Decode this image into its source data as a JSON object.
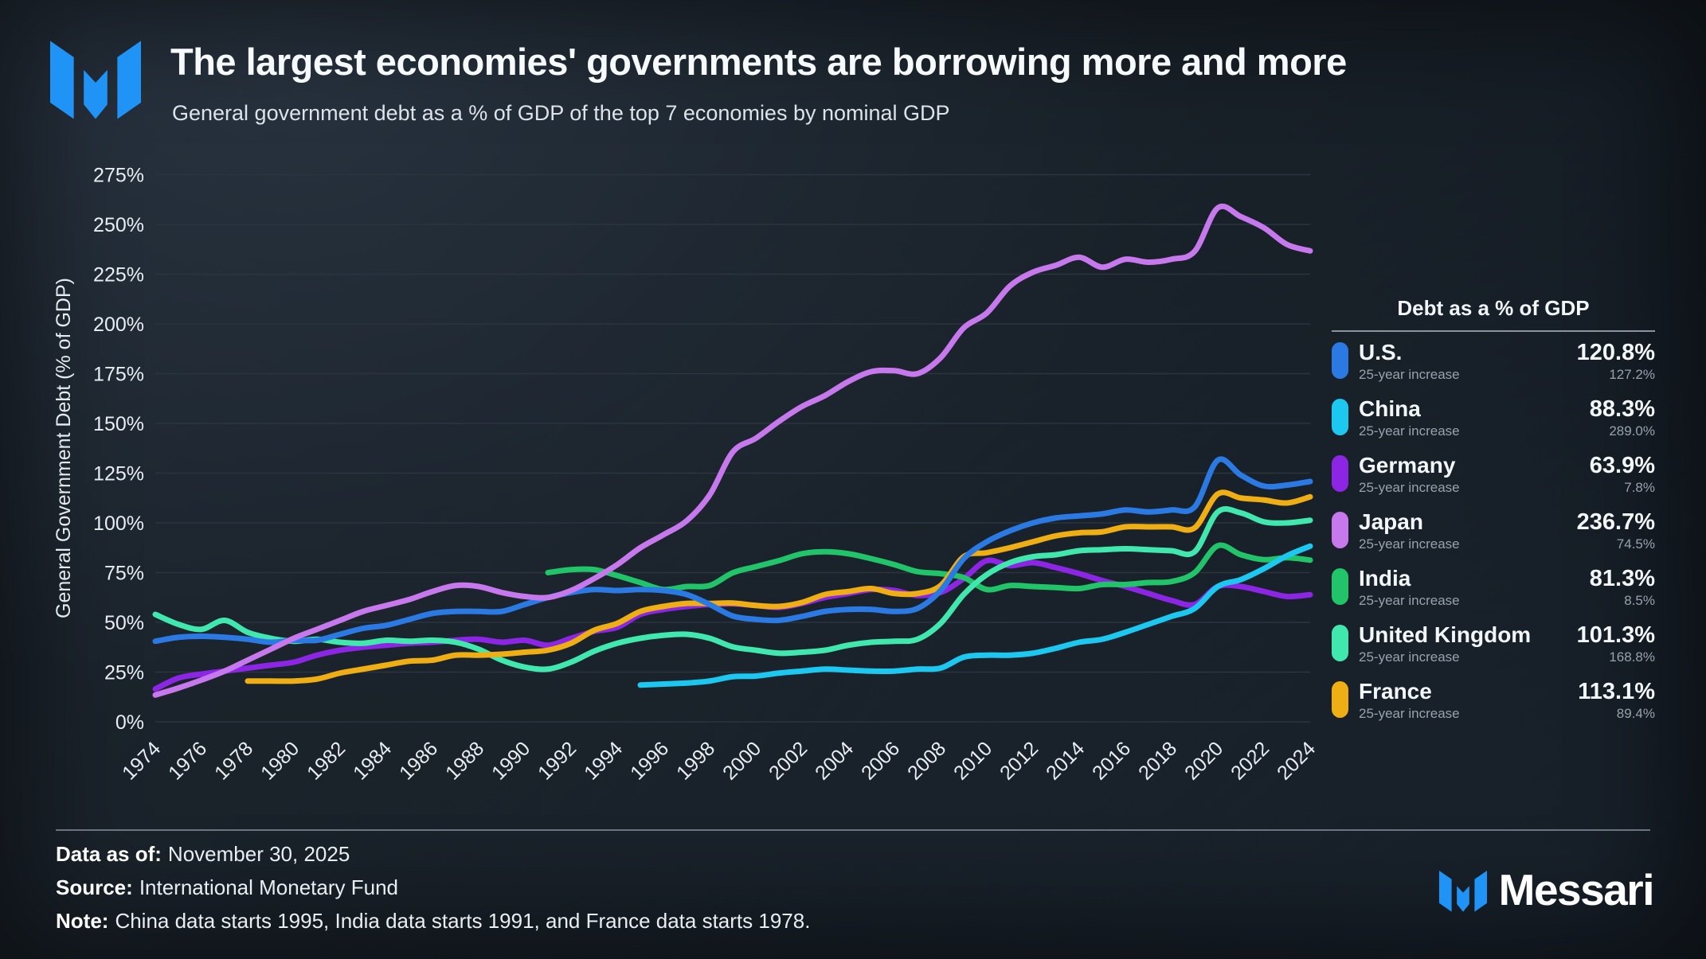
{
  "header": {
    "title": "The largest economies' governments are borrowing more and more",
    "subtitle": "General government debt as a % of GDP of the top 7 economies by nominal GDP"
  },
  "chart_data": {
    "type": "line",
    "title": "The largest economies' governments are borrowing more and more",
    "ylabel": "General Government Debt (% of GDP)",
    "ylim": [
      0,
      275
    ],
    "ytick_step": 25,
    "yticks": [
      "0%",
      "25%",
      "50%",
      "75%",
      "100%",
      "125%",
      "150%",
      "175%",
      "200%",
      "225%",
      "250%",
      "275%"
    ],
    "xticks": [
      1974,
      1976,
      1978,
      1980,
      1982,
      1984,
      1986,
      1988,
      1990,
      1992,
      1994,
      1996,
      1998,
      2000,
      2002,
      2004,
      2006,
      2008,
      2010,
      2012,
      2014,
      2016,
      2018,
      2020,
      2022,
      2024
    ],
    "x_range": [
      1974,
      2024
    ],
    "grid": "horizontal",
    "legend_position": "right",
    "series": [
      {
        "name": "U.S.",
        "color": "#2b7ae4",
        "start_year": 1974,
        "values": [
          40.5,
          42.5,
          43,
          42.5,
          41.5,
          40,
          41,
          41,
          44,
          47,
          48.5,
          51.5,
          54.5,
          55.5,
          55.5,
          55.5,
          59,
          62.5,
          65,
          66.5,
          66,
          66.5,
          66,
          64,
          59,
          53.2,
          51.5,
          51,
          53,
          55.5,
          56.5,
          56.5,
          55.5,
          57,
          66,
          82,
          90.5,
          96,
          100,
          102.5,
          103.5,
          104.5,
          106.5,
          105.5,
          106.5,
          108,
          131.5,
          124,
          118.5,
          119,
          120.8
        ]
      },
      {
        "name": "China",
        "color": "#1cc7f0",
        "start_year": 1995,
        "values": [
          18.5,
          19,
          19.5,
          20.5,
          22.7,
          23,
          24.5,
          25.5,
          26.5,
          26,
          25.5,
          25.5,
          26.5,
          27,
          32.5,
          33.5,
          33.5,
          34.5,
          37,
          40,
          41.5,
          45,
          49,
          53,
          57,
          68,
          71.5,
          77,
          83.5,
          88.3
        ]
      },
      {
        "name": "Germany",
        "color": "#8c26e4",
        "start_year": 1974,
        "values": [
          16.5,
          22,
          24,
          25.5,
          27,
          28.5,
          30,
          33.5,
          36,
          37.5,
          38.5,
          39.5,
          40,
          41,
          41.5,
          40,
          41,
          38.5,
          42,
          45.5,
          47.5,
          54,
          56.5,
          58,
          59,
          59.3,
          58.5,
          57.5,
          59.5,
          62.5,
          64.5,
          66.5,
          66,
          63.5,
          65,
          72,
          81,
          78.5,
          80,
          77.5,
          74.5,
          71,
          68,
          64.5,
          61,
          59,
          68,
          68,
          65.5,
          63,
          63.9
        ]
      },
      {
        "name": "Japan",
        "color": "#c678ec",
        "start_year": 1974,
        "values": [
          13.5,
          17,
          21,
          25.5,
          31,
          36.5,
          42,
          46.5,
          51,
          55.5,
          58.5,
          61.5,
          65.5,
          68.5,
          68,
          65,
          63,
          62.5,
          66,
          72,
          79,
          87.5,
          94,
          101,
          114,
          135.6,
          142.5,
          151,
          158.5,
          164,
          171,
          176,
          176.5,
          175,
          183,
          198,
          205.5,
          219,
          226,
          229.5,
          233.5,
          228.5,
          232.5,
          231,
          232.5,
          236.5,
          258.3,
          253.9,
          248.3,
          239.9,
          236.7
        ]
      },
      {
        "name": "India",
        "color": "#21c468",
        "start_year": 1991,
        "values": [
          75,
          76.5,
          76.5,
          73.5,
          70,
          66.5,
          68,
          68.5,
          74.9,
          78,
          81,
          84.5,
          85.5,
          84.5,
          82,
          79,
          75.5,
          74.5,
          72.5,
          66.5,
          68.5,
          68,
          67.5,
          67,
          69,
          69,
          70,
          70.5,
          75,
          88.5,
          84,
          81.5,
          82.5,
          81.3
        ]
      },
      {
        "name": "United Kingdom",
        "color": "#41e8ae",
        "start_year": 1974,
        "values": [
          54,
          49,
          46.5,
          51,
          45,
          42,
          40.5,
          41.5,
          40,
          39.5,
          41,
          40.5,
          41,
          40,
          36.5,
          31,
          27.5,
          26.5,
          30,
          35.5,
          39.5,
          42,
          43.5,
          44,
          42,
          37.7,
          36,
          34.5,
          35,
          36,
          38.5,
          40,
          40.5,
          41.5,
          49.5,
          64,
          74,
          80,
          83,
          84,
          86,
          86.5,
          87,
          86.5,
          86,
          85.5,
          105.5,
          105,
          100.5,
          100,
          101.3
        ]
      },
      {
        "name": "France",
        "color": "#efae14",
        "start_year": 1978,
        "values": [
          20.5,
          20.5,
          20.5,
          21.5,
          24.5,
          26.5,
          28.5,
          30.5,
          31,
          33.5,
          33.5,
          34,
          35,
          36,
          39.5,
          46,
          49.5,
          55.5,
          58,
          59.5,
          59.5,
          59.7,
          58.5,
          58,
          60,
          64,
          65.5,
          67,
          64.5,
          64.5,
          68.5,
          83,
          85,
          87.5,
          90.5,
          93.5,
          95,
          95.5,
          98,
          98,
          98,
          97.5,
          114.5,
          112.5,
          111.5,
          110,
          113.1
        ]
      }
    ]
  },
  "legend": {
    "title": "Debt as a % of GDP",
    "rows": [
      {
        "name": "U.S.",
        "value": "120.8%",
        "sub_label": "25-year increase",
        "sub_value": "127.2%",
        "color": "#2b7ae4"
      },
      {
        "name": "China",
        "value": "88.3%",
        "sub_label": "25-year increase",
        "sub_value": "289.0%",
        "color": "#1cc7f0"
      },
      {
        "name": "Germany",
        "value": "63.9%",
        "sub_label": "25-year increase",
        "sub_value": "7.8%",
        "color": "#8c26e4"
      },
      {
        "name": "Japan",
        "value": "236.7%",
        "sub_label": "25-year increase",
        "sub_value": "74.5%",
        "color": "#c678ec"
      },
      {
        "name": "India",
        "value": "81.3%",
        "sub_label": "25-year increase",
        "sub_value": "8.5%",
        "color": "#21c468"
      },
      {
        "name": "United Kingdom",
        "value": "101.3%",
        "sub_label": "25-year increase",
        "sub_value": "168.8%",
        "color": "#41e8ae"
      },
      {
        "name": "France",
        "value": "113.1%",
        "sub_label": "25-year increase",
        "sub_value": "89.4%",
        "color": "#efae14"
      }
    ]
  },
  "footer": {
    "data_as_of_label": "Data as of:",
    "data_as_of": "November 30, 2025",
    "source_label": "Source:",
    "source": "International Monetary Fund",
    "note_label": "Note:",
    "note": "China data starts 1995, India data starts 1991, and France data starts 1978."
  },
  "branding": {
    "wordmark": "Messari",
    "logo_color": "#2094f6"
  }
}
